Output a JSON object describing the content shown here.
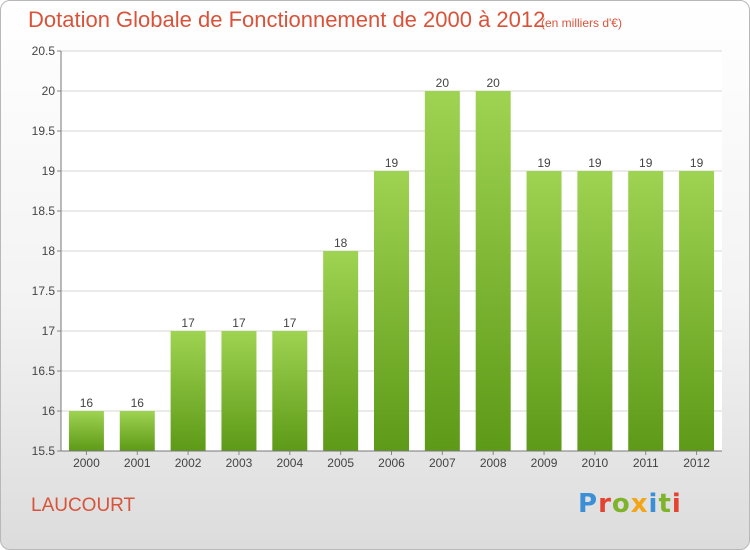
{
  "header": {
    "title": "Dotation Globale de Fonctionnement de 2000 à 2012",
    "unit": "(en milliers d'€)"
  },
  "footer": {
    "commune": "LAUCOURT",
    "logo": "Proxiti"
  },
  "colors": {
    "bar_top": "#9fd352",
    "bar_bottom": "#5d9a17",
    "title": "#d9533a"
  },
  "chart_data": {
    "type": "bar",
    "categories": [
      "2000",
      "2001",
      "2002",
      "2003",
      "2004",
      "2005",
      "2006",
      "2007",
      "2008",
      "2009",
      "2010",
      "2011",
      "2012"
    ],
    "values": [
      16,
      16,
      17,
      17,
      17,
      18,
      19,
      20,
      20,
      19,
      19,
      19,
      19
    ],
    "data_labels": [
      "16",
      "16",
      "17",
      "17",
      "17",
      "18",
      "19",
      "20",
      "20",
      "19",
      "19",
      "19",
      "19"
    ],
    "title": "Dotation Globale de Fonctionnement de 2000 à 2012",
    "xlabel": "",
    "ylabel": "",
    "ylim": [
      15.5,
      20.5
    ],
    "yticks": [
      15.5,
      16,
      16.5,
      17,
      17.5,
      18,
      18.5,
      19,
      19.5,
      20,
      20.5
    ],
    "ytick_labels": [
      "15.5",
      "16",
      "16.5",
      "17",
      "17.5",
      "18",
      "18.5",
      "19",
      "19.5",
      "20",
      "20.5"
    ],
    "grid": true,
    "legend": "none"
  }
}
